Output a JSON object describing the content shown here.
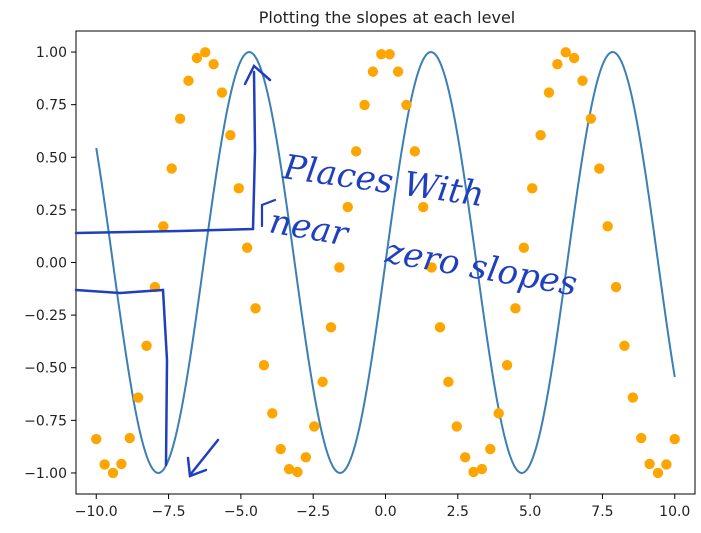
{
  "chart_data": {
    "type": "line+scatter",
    "title": "Plotting the slopes at each level",
    "xlim": [
      -10.7,
      10.7
    ],
    "ylim": [
      -1.1,
      1.1
    ],
    "x_ticks": [
      -10,
      -7.5,
      -5,
      -2.5,
      0,
      2.5,
      5,
      7.5,
      10
    ],
    "x_tick_labels": [
      "−10.0",
      "−7.5",
      "−5.0",
      "−2.5",
      "0.0",
      "2.5",
      "5.0",
      "7.5",
      "10.0"
    ],
    "y_ticks": [
      1.0,
      0.75,
      0.5,
      0.25,
      0.0,
      -0.25,
      -0.5,
      -0.75,
      -1.0
    ],
    "y_tick_labels": [
      "1.00",
      "0.75",
      "0.50",
      "0.25",
      "0.00",
      "−0.25",
      "−0.50",
      "−0.75",
      "−1.00"
    ],
    "grid": false,
    "series": [
      {
        "kind": "line",
        "function": "sin(x)",
        "x_range": [
          -10,
          10
        ],
        "color": "#3b7fb5"
      },
      {
        "kind": "scatter",
        "function": "cos(x)",
        "x_range": [
          -10,
          10
        ],
        "point_count": 70,
        "color": "#ffa500"
      }
    ]
  },
  "annotations": {
    "color": "#1f3fbf",
    "text_line1": "Places With",
    "text_line2": "near",
    "text_line3": "zero slopes"
  }
}
